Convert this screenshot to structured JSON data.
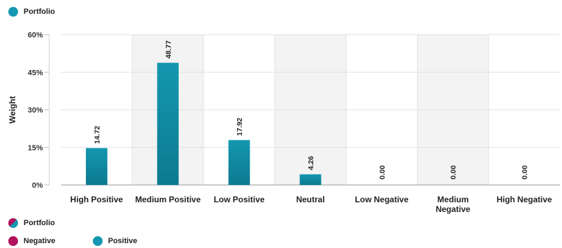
{
  "legend_top": {
    "label": "Portfolio",
    "color": "#1497b0"
  },
  "legend_bottom": {
    "portfolio_label": "Portfolio",
    "negative_label": "Negative",
    "positive_label": "Positive",
    "negative_color": "#b0125c",
    "positive_color": "#1497b0"
  },
  "chart_data": {
    "type": "bar",
    "categories": [
      "High Positive",
      "Medium Positive",
      "Low Positive",
      "Neutral",
      "Low Negative",
      "Medium Negative",
      "High Negative"
    ],
    "series": [
      {
        "values": [
          14.72,
          48.77,
          17.92,
          4.26,
          0.0,
          0.0,
          0.0
        ]
      }
    ],
    "data_labels": [
      "14.72",
      "48.77",
      "17.92",
      "4.26",
      "0.00",
      "0.00",
      "0.00"
    ],
    "ylabel": "Weight",
    "ylim": [
      0,
      60
    ],
    "yticks": [
      0,
      15,
      30,
      45,
      60
    ],
    "ytick_labels": [
      "0%",
      "15%",
      "30%",
      "45%",
      "60%"
    ],
    "bar_color": "#1497b0",
    "bar_color_dark": "#0c7a8f",
    "band_color": "#f3f3f3",
    "shaded_categories": [
      "Medium Positive",
      "Neutral",
      "Medium Negative"
    ]
  }
}
